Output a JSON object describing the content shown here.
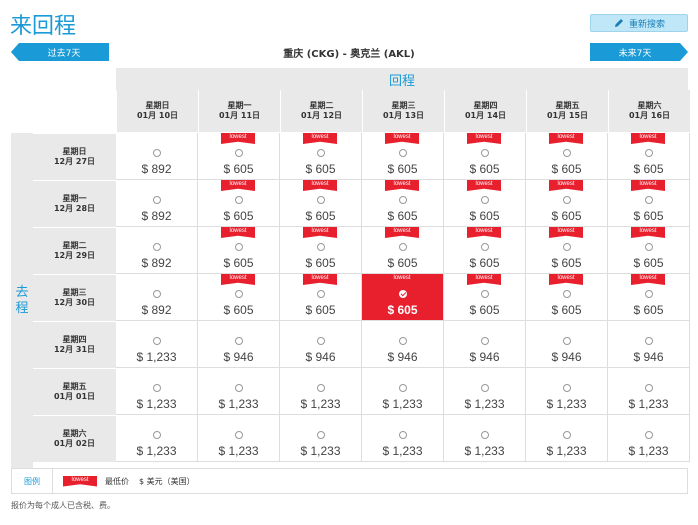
{
  "title": "来回程",
  "new_search_label": "重新搜索",
  "prev_label": "过去7天",
  "next_label": "未来7天",
  "route": "重庆 (CKG) - 奥克兰 (AKL)",
  "return_label": "回程",
  "depart_label": "去程",
  "lowest_tag": "lowest",
  "columns": [
    {
      "weekday": "星期日",
      "date": "01月 10日"
    },
    {
      "weekday": "星期一",
      "date": "01月 11日"
    },
    {
      "weekday": "星期二",
      "date": "01月 12日"
    },
    {
      "weekday": "星期三",
      "date": "01月 13日"
    },
    {
      "weekday": "星期四",
      "date": "01月 14日"
    },
    {
      "weekday": "星期五",
      "date": "01月 15日"
    },
    {
      "weekday": "星期六",
      "date": "01月 16日"
    }
  ],
  "rows": [
    {
      "weekday": "星期日",
      "date": "12月 27日",
      "cells": [
        {
          "price": "$ 892",
          "lowest": false
        },
        {
          "price": "$ 605",
          "lowest": true
        },
        {
          "price": "$ 605",
          "lowest": true
        },
        {
          "price": "$ 605",
          "lowest": true
        },
        {
          "price": "$ 605",
          "lowest": true
        },
        {
          "price": "$ 605",
          "lowest": true
        },
        {
          "price": "$ 605",
          "lowest": true
        }
      ]
    },
    {
      "weekday": "星期一",
      "date": "12月 28日",
      "cells": [
        {
          "price": "$ 892",
          "lowest": false
        },
        {
          "price": "$ 605",
          "lowest": true
        },
        {
          "price": "$ 605",
          "lowest": true
        },
        {
          "price": "$ 605",
          "lowest": true
        },
        {
          "price": "$ 605",
          "lowest": true
        },
        {
          "price": "$ 605",
          "lowest": true
        },
        {
          "price": "$ 605",
          "lowest": true
        }
      ]
    },
    {
      "weekday": "星期二",
      "date": "12月 29日",
      "cells": [
        {
          "price": "$ 892",
          "lowest": false
        },
        {
          "price": "$ 605",
          "lowest": true
        },
        {
          "price": "$ 605",
          "lowest": true
        },
        {
          "price": "$ 605",
          "lowest": true
        },
        {
          "price": "$ 605",
          "lowest": true
        },
        {
          "price": "$ 605",
          "lowest": true
        },
        {
          "price": "$ 605",
          "lowest": true
        }
      ]
    },
    {
      "weekday": "星期三",
      "date": "12月 30日",
      "cells": [
        {
          "price": "$ 892",
          "lowest": false
        },
        {
          "price": "$ 605",
          "lowest": true
        },
        {
          "price": "$ 605",
          "lowest": true
        },
        {
          "price": "$ 605",
          "lowest": true,
          "selected": true
        },
        {
          "price": "$ 605",
          "lowest": true
        },
        {
          "price": "$ 605",
          "lowest": true
        },
        {
          "price": "$ 605",
          "lowest": true
        }
      ]
    },
    {
      "weekday": "星期四",
      "date": "12月 31日",
      "cells": [
        {
          "price": "$ 1,233",
          "lowest": false
        },
        {
          "price": "$ 946",
          "lowest": false
        },
        {
          "price": "$ 946",
          "lowest": false
        },
        {
          "price": "$ 946",
          "lowest": false
        },
        {
          "price": "$ 946",
          "lowest": false
        },
        {
          "price": "$ 946",
          "lowest": false
        },
        {
          "price": "$ 946",
          "lowest": false
        }
      ]
    },
    {
      "weekday": "星期五",
      "date": "01月 01日",
      "cells": [
        {
          "price": "$ 1,233",
          "lowest": false
        },
        {
          "price": "$ 1,233",
          "lowest": false
        },
        {
          "price": "$ 1,233",
          "lowest": false
        },
        {
          "price": "$ 1,233",
          "lowest": false
        },
        {
          "price": "$ 1,233",
          "lowest": false
        },
        {
          "price": "$ 1,233",
          "lowest": false
        },
        {
          "price": "$ 1,233",
          "lowest": false
        }
      ]
    },
    {
      "weekday": "星期六",
      "date": "01月 02日",
      "cells": [
        {
          "price": "$ 1,233",
          "lowest": false
        },
        {
          "price": "$ 1,233",
          "lowest": false
        },
        {
          "price": "$ 1,233",
          "lowest": false
        },
        {
          "price": "$ 1,233",
          "lowest": false
        },
        {
          "price": "$ 1,233",
          "lowest": false
        },
        {
          "price": "$ 1,233",
          "lowest": false
        },
        {
          "price": "$ 1,233",
          "lowest": false
        }
      ]
    }
  ],
  "legend": {
    "title": "图例",
    "lowest_text": "最低价",
    "currency_text": "$  美元（美国）"
  },
  "note": "报价为每个成人已含税、费。",
  "colors": {
    "accent": "#1a9ad6",
    "lowest": "#e8202e",
    "header_bg": "#e9e9e9"
  },
  "icons": {
    "new_search": "pencil-icon",
    "radio": "radio-icon",
    "selected": "check-icon"
  }
}
